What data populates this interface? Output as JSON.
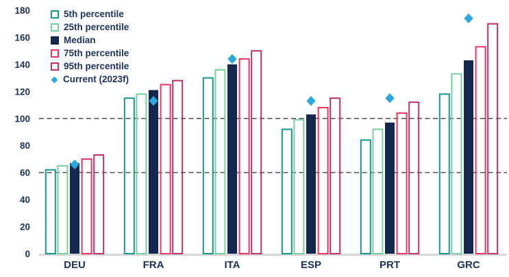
{
  "chart_data": {
    "type": "bar",
    "title": "",
    "xlabel": "",
    "ylabel": "",
    "categories": [
      "DEU",
      "FRA",
      "ITA",
      "ESP",
      "PRT",
      "GRC"
    ],
    "series": [
      {
        "name": "5th percentile",
        "style": "outline",
        "color": "#10998d",
        "values": [
          62,
          115,
          130,
          92,
          84,
          118
        ]
      },
      {
        "name": "25th percentile",
        "style": "outline",
        "color": "#74d19c",
        "values": [
          65,
          118,
          136,
          99,
          92,
          133
        ]
      },
      {
        "name": "Median",
        "style": "fill",
        "color": "#14274c",
        "values": [
          67,
          121,
          140,
          103,
          97,
          143
        ]
      },
      {
        "name": "75th percentile",
        "style": "outline",
        "color": "#f0325f",
        "values": [
          70,
          125,
          144,
          108,
          104,
          153
        ]
      },
      {
        "name": "95th percentile",
        "style": "outline",
        "color": "#bd3069",
        "values": [
          73,
          128,
          150,
          115,
          112,
          170
        ]
      }
    ],
    "markers": {
      "name": "Current (2023f)",
      "shape": "diamond",
      "color": "#2aa8e0",
      "values": [
        66,
        113,
        144,
        113,
        115,
        174
      ]
    },
    "y_axis": {
      "min": 0,
      "max": 180,
      "step": 20,
      "ticks": [
        0,
        20,
        40,
        60,
        80,
        100,
        120,
        140,
        160,
        180
      ]
    },
    "reference_lines": [
      {
        "value": 100
      },
      {
        "value": 60
      }
    ],
    "legend_position": "top-left",
    "grid": "off",
    "colors": {
      "text": "#1d3160",
      "refline": "#4d4d4d",
      "baseline": "#d8d8d8",
      "background": "#ffffff"
    }
  }
}
